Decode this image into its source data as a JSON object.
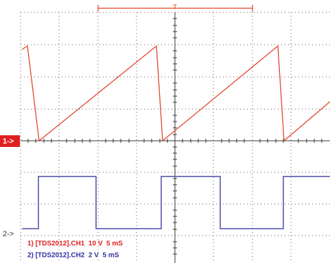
{
  "trigger": "T",
  "markers": {
    "ch1": "1->",
    "ch2": "2->"
  },
  "legend": [
    "1) [TDS2012].CH1  10 V  5 mS",
    "2) [TDS2012].CH2  2 V  5 mS"
  ]
}
